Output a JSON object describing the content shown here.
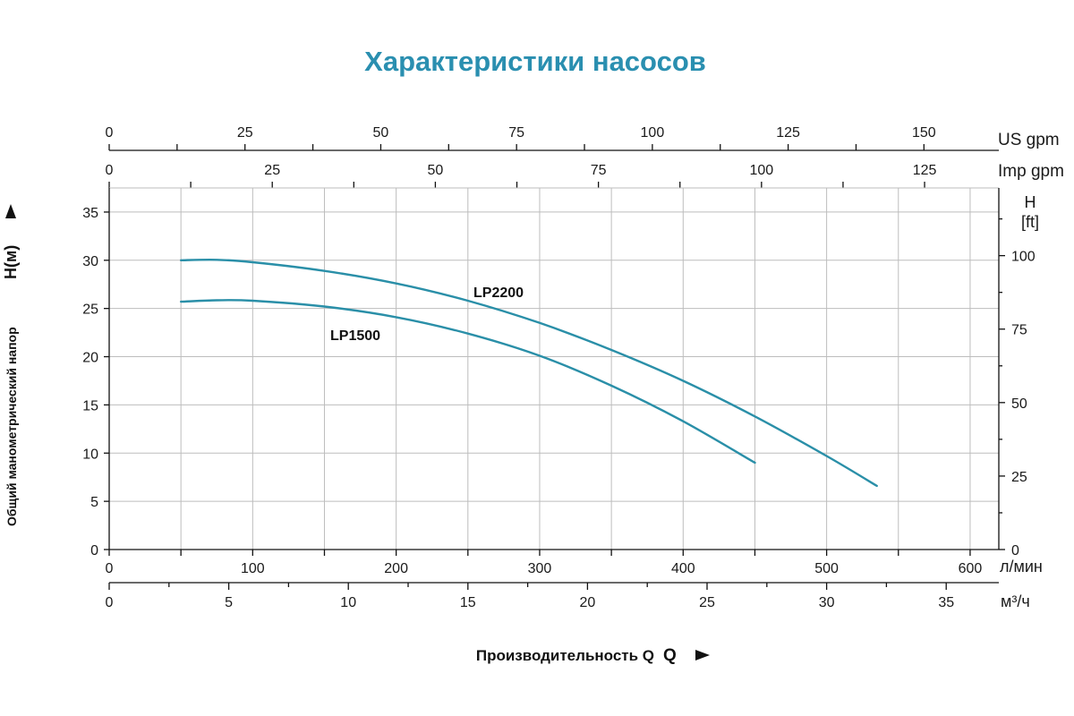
{
  "chart_data": {
    "type": "line",
    "title": "Характеристики насосов",
    "xlabel": "Производительность Q",
    "ylabel": "Общий манометрический напор",
    "ylabel_symbol": "H(м)",
    "right_axis_label": "H",
    "right_axis_unit": "[ft]",
    "x_unit_primary": "л/мин",
    "x_unit_secondary": "м³/ч",
    "top_unit_1": "US gpm",
    "top_unit_2": "Imp gpm",
    "xlim": [
      0,
      620
    ],
    "ylim": [
      0,
      37.5
    ],
    "grid": true,
    "x_ticks": [
      0,
      100,
      200,
      300,
      400,
      500,
      600
    ],
    "y_ticks": [
      0,
      5,
      10,
      15,
      20,
      25,
      30,
      35
    ],
    "right_ticks": [
      0,
      25,
      50,
      75,
      100
    ],
    "m3h_ticks": [
      0,
      5,
      10,
      15,
      20,
      25,
      30,
      35
    ],
    "usgpm_ticks": [
      0,
      25,
      50,
      75,
      100,
      125,
      150
    ],
    "impgpm_ticks": [
      0,
      25,
      50,
      75,
      100,
      125
    ],
    "series": [
      {
        "name": "LP2200",
        "x": [
          50,
          75,
          100,
          150,
          200,
          250,
          300,
          350,
          400,
          450,
          500,
          535
        ],
        "y": [
          30,
          30.05,
          29.8,
          28.9,
          27.6,
          25.8,
          23.5,
          20.7,
          17.5,
          13.8,
          9.7,
          6.6
        ]
      },
      {
        "name": "LP1500",
        "x": [
          50,
          75,
          100,
          150,
          200,
          250,
          300,
          350,
          400,
          450
        ],
        "y": [
          25.7,
          25.85,
          25.8,
          25.2,
          24.1,
          22.4,
          20.1,
          17.0,
          13.3,
          9.0
        ]
      }
    ],
    "colors": {
      "title": "#2a8fb0",
      "curve": "#2a8fa8",
      "grid": "#bdbdbd"
    }
  }
}
